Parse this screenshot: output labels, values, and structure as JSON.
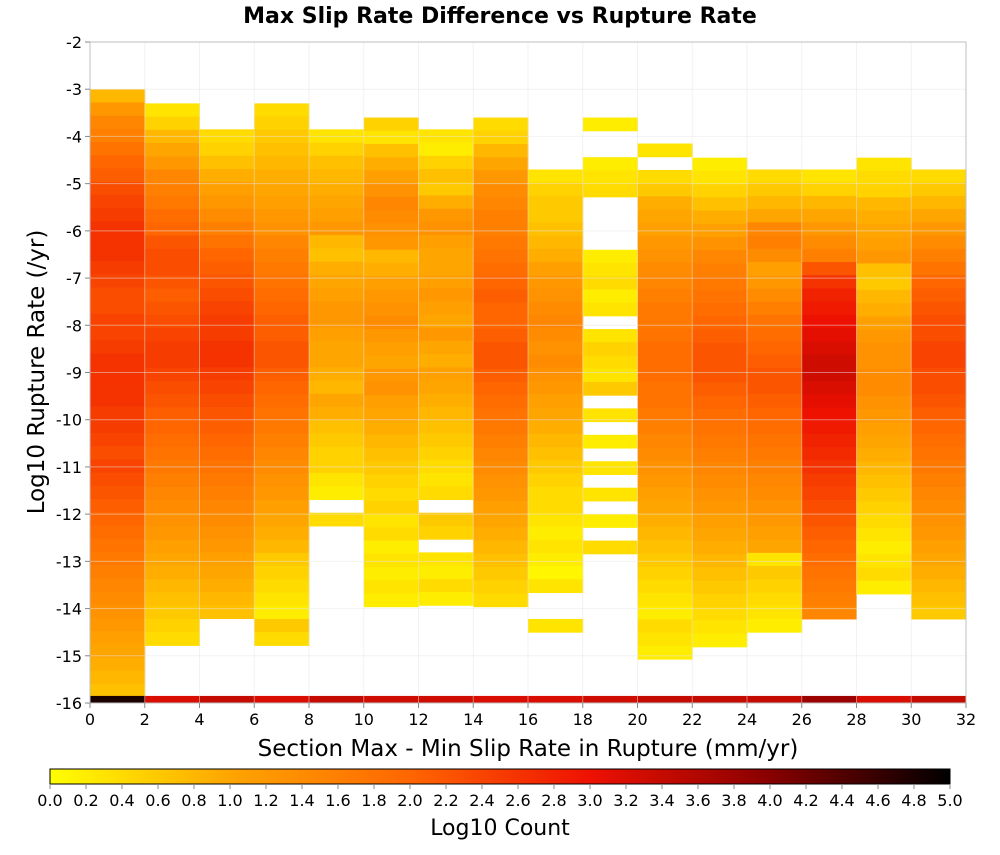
{
  "chart_data": {
    "type": "heatmap",
    "title": "Max Slip Rate Difference vs Rupture Rate",
    "xlabel": "Section Max - Min Slip Rate in Rupture (mm/yr)",
    "ylabel": "Log10 Rupture Rate (/yr)",
    "xlim": [
      0,
      32
    ],
    "ylim": [
      -16,
      -2
    ],
    "x_ticks": [
      "0",
      "2",
      "4",
      "6",
      "8",
      "10",
      "12",
      "14",
      "16",
      "18",
      "20",
      "22",
      "24",
      "26",
      "28",
      "30",
      "32"
    ],
    "y_ticks": [
      "-2",
      "-3",
      "-4",
      "-5",
      "-6",
      "-7",
      "-8",
      "-9",
      "-10",
      "-11",
      "-12",
      "-13",
      "-14",
      "-15",
      "-16"
    ],
    "x_bin_width": 2,
    "y_bin_height": 0.28,
    "grid": true,
    "colorbar": {
      "label": "Log10 Count",
      "min": 0.0,
      "max": 5.0,
      "ticks": [
        "0.0",
        "0.2",
        "0.4",
        "0.6",
        "0.8",
        "1.0",
        "1.2",
        "1.4",
        "1.6",
        "1.8",
        "2.0",
        "2.2",
        "2.4",
        "2.6",
        "2.8",
        "3.0",
        "3.2",
        "3.4",
        "3.6",
        "3.8",
        "4.0",
        "4.2",
        "4.4",
        "4.6",
        "4.8",
        "5.0"
      ],
      "colors": [
        "#ffff00",
        "#ffa500",
        "#ff6600",
        "#ee1100",
        "#880000",
        "#000000"
      ]
    },
    "columns": [
      {
        "x": 0,
        "top": -3.0,
        "tops": [
          0.8,
          1.2,
          1.5,
          1.6,
          1.8,
          2.0,
          2.1,
          2.3,
          2.4,
          2.5,
          2.6,
          2.6,
          2.6,
          2.5,
          2.4,
          2.3,
          2.3,
          2.4,
          2.4,
          2.5,
          2.6,
          2.6,
          2.6,
          2.6,
          2.5,
          2.5,
          2.4,
          2.3,
          2.4,
          2.3,
          2.2,
          2.1,
          2.0,
          1.9,
          1.8,
          1.7,
          1.6,
          1.5,
          1.4,
          1.3,
          1.2,
          1.1,
          1.0,
          0.9,
          0.8,
          0.7,
          0.6,
          4.8
        ]
      },
      {
        "x": 2,
        "top": -3.3,
        "tops": [
          0.3,
          0.5,
          0.8,
          1.0,
          1.2,
          1.5,
          1.6,
          1.7,
          1.9,
          2.0,
          2.2,
          2.3,
          2.3,
          2.2,
          2.1,
          2.2,
          2.3,
          2.4,
          2.5,
          2.5,
          2.4,
          2.3,
          2.2,
          2.1,
          2.0,
          1.9,
          1.8,
          1.7,
          1.6,
          1.5,
          1.4,
          1.3,
          1.2,
          1.1,
          1.0,
          0.9,
          0.8,
          0.7,
          0.6,
          0.5,
          0.4,
          3.2
        ]
      },
      {
        "x": 4,
        "top": -3.85,
        "tops": [
          0.4,
          0.5,
          0.7,
          0.9,
          1.1,
          1.2,
          1.4,
          1.6,
          1.8,
          2.0,
          2.1,
          2.2,
          2.3,
          2.4,
          2.5,
          2.5,
          2.6,
          2.6,
          2.5,
          2.4,
          2.3,
          2.2,
          2.1,
          2.0,
          1.9,
          1.8,
          1.7,
          1.6,
          1.5,
          1.4,
          1.3,
          1.2,
          1.1,
          1.0,
          0.9,
          0.8,
          0.7,
          3.4
        ]
      },
      {
        "x": 6,
        "top": -3.3,
        "tops": [
          0.4,
          0.5,
          0.6,
          0.7,
          0.8,
          0.9,
          1.0,
          1.1,
          1.2,
          1.3,
          1.5,
          1.6,
          1.7,
          1.8,
          1.9,
          2.0,
          2.1,
          2.1,
          2.2,
          2.2,
          2.1,
          2.0,
          1.9,
          1.8,
          1.7,
          1.6,
          1.5,
          1.4,
          1.3,
          1.2,
          1.1,
          1.0,
          0.9,
          0.8,
          0.6,
          0.5,
          0.4,
          0.3,
          0.2,
          0.6,
          0.4,
          3.2
        ]
      },
      {
        "x": 8,
        "top": -3.85,
        "tops": [
          0.3,
          0.5,
          0.7,
          0.8,
          0.9,
          1.0,
          1.1,
          1.2,
          0.8,
          0.7,
          0.9,
          1.0,
          1.1,
          1.2,
          1.2,
          1.1,
          1.0,
          1.0,
          0.9,
          0.8,
          1.0,
          0.9,
          0.7,
          0.6,
          0.5,
          0.5,
          0.3,
          0.2,
          -1,
          0.4,
          -1,
          -1,
          -1,
          -1,
          -1,
          -1,
          3.4
        ]
      },
      {
        "x": 10,
        "top": -3.6,
        "tops": [
          0.5,
          0.3,
          0.7,
          0.9,
          1.1,
          1.3,
          1.5,
          1.4,
          1.3,
          1.2,
          0.8,
          0.9,
          1.1,
          1.2,
          1.3,
          1.4,
          1.2,
          1.1,
          1.0,
          1.2,
          1.3,
          1.1,
          1.0,
          0.9,
          0.8,
          0.7,
          0.6,
          0.5,
          0.4,
          0.5,
          0.3,
          0.4,
          0.2,
          0.3,
          0.2,
          0.3,
          0.2,
          3.3
        ]
      },
      {
        "x": 12,
        "top": -3.85,
        "tops": [
          0.3,
          0.2,
          0.5,
          0.7,
          0.6,
          0.9,
          1.2,
          1.3,
          1.1,
          1.0,
          1.0,
          1.1,
          1.2,
          1.1,
          1.0,
          1.2,
          1.0,
          0.9,
          1.1,
          1.0,
          0.9,
          0.8,
          0.7,
          0.6,
          0.5,
          0.4,
          0.3,
          0.4,
          -1,
          0.6,
          0.5,
          -1,
          0.3,
          0.2,
          0.4,
          0.2,
          3.3
        ]
      },
      {
        "x": 14,
        "top": -3.6,
        "tops": [
          0.4,
          0.5,
          0.8,
          1.0,
          1.2,
          1.4,
          1.5,
          1.6,
          1.6,
          1.7,
          1.8,
          1.9,
          2.0,
          2.1,
          2.0,
          2.0,
          2.1,
          2.2,
          2.2,
          2.1,
          2.0,
          1.9,
          1.8,
          1.7,
          1.6,
          1.5,
          1.4,
          1.3,
          1.2,
          1.1,
          1.0,
          0.9,
          0.8,
          0.7,
          0.6,
          0.5,
          0.4,
          3.2
        ]
      },
      {
        "x": 16,
        "top": -4.7,
        "tops": [
          0.3,
          0.5,
          0.6,
          0.6,
          0.7,
          0.8,
          0.9,
          1.1,
          1.2,
          1.3,
          1.4,
          1.5,
          1.4,
          1.3,
          1.4,
          1.3,
          1.2,
          1.1,
          1.0,
          0.9,
          0.8,
          0.7,
          0.6,
          0.5,
          0.4,
          0.4,
          0.3,
          0.2,
          0.3,
          0.2,
          0.1,
          0.3,
          -1,
          -1,
          0.3,
          3.2
        ]
      },
      {
        "x": 18,
        "top": -3.6,
        "tops": [
          0.2,
          -1,
          -1,
          0.2,
          0.3,
          0.4,
          -1,
          -1,
          -1,
          -1,
          0.2,
          0.3,
          0.4,
          0.2,
          0.3,
          -1,
          0.3,
          0.5,
          0.4,
          0.3,
          0.6,
          -1,
          0.3,
          -1,
          0.2,
          -1,
          0.3,
          -1,
          0.3,
          -1,
          0.2,
          -1,
          0.4,
          -1,
          -1,
          -1,
          -1,
          -1,
          -1,
          -1,
          -1,
          -1,
          -1,
          -1,
          3.3
        ]
      },
      {
        "x": 20,
        "top": -4.15,
        "tops": [
          0.3,
          -1,
          0.4,
          0.6,
          0.9,
          1.0,
          1.1,
          1.2,
          1.3,
          1.4,
          1.5,
          1.6,
          1.7,
          1.7,
          1.8,
          1.9,
          1.9,
          1.9,
          1.8,
          1.8,
          1.7,
          1.6,
          1.5,
          1.4,
          1.3,
          1.2,
          1.1,
          1.0,
          0.9,
          0.8,
          0.7,
          0.6,
          0.5,
          0.4,
          0.3,
          0.2,
          0.4,
          0.3,
          0.2,
          3.4
        ]
      },
      {
        "x": 22,
        "top": -4.45,
        "tops": [
          0.2,
          0.3,
          0.5,
          0.7,
          0.9,
          1.1,
          1.3,
          1.5,
          1.6,
          1.7,
          1.8,
          1.9,
          2.0,
          2.1,
          2.2,
          2.2,
          2.2,
          2.1,
          2.0,
          1.9,
          1.8,
          1.7,
          1.6,
          1.5,
          1.4,
          1.3,
          1.2,
          1.1,
          1.0,
          0.9,
          0.8,
          0.7,
          0.6,
          0.5,
          0.4,
          0.3,
          0.2,
          3.4
        ]
      },
      {
        "x": 24,
        "top": -4.7,
        "tops": [
          0.4,
          0.6,
          0.8,
          1.0,
          1.5,
          1.6,
          1.4,
          1.1,
          1.2,
          1.4,
          1.6,
          1.8,
          1.9,
          2.0,
          2.1,
          2.2,
          2.2,
          2.1,
          2.0,
          1.9,
          1.8,
          1.7,
          1.6,
          1.5,
          1.4,
          1.3,
          1.2,
          1.1,
          1.0,
          0.3,
          0.6,
          0.5,
          0.4,
          0.3,
          0.2,
          3.4
        ]
      },
      {
        "x": 26,
        "top": -4.7,
        "tops": [
          0.3,
          0.5,
          0.8,
          1.0,
          1.2,
          1.4,
          1.6,
          2.2,
          2.6,
          2.8,
          2.9,
          3.0,
          3.1,
          3.2,
          3.3,
          3.3,
          3.2,
          3.1,
          3.0,
          2.9,
          2.8,
          2.7,
          2.6,
          2.5,
          2.4,
          2.3,
          2.2,
          2.1,
          2.0,
          1.9,
          1.8,
          1.7,
          1.6,
          1.5,
          3.8
        ]
      },
      {
        "x": 28,
        "top": -4.45,
        "tops": [
          0.3,
          0.4,
          0.5,
          0.8,
          0.9,
          1.0,
          1.1,
          1.2,
          0.7,
          0.6,
          0.8,
          0.9,
          1.1,
          1.2,
          1.3,
          1.3,
          1.4,
          1.4,
          1.3,
          1.2,
          1.1,
          1.0,
          0.9,
          0.8,
          0.7,
          0.6,
          0.5,
          0.4,
          0.3,
          0.2,
          0.3,
          0.4,
          0.2,
          -1,
          3.2
        ]
      },
      {
        "x": 30,
        "top": -4.7,
        "tops": [
          0.4,
          0.6,
          0.8,
          1.0,
          1.2,
          1.4,
          1.6,
          1.8,
          2.0,
          2.1,
          2.2,
          2.3,
          2.3,
          2.4,
          2.4,
          2.3,
          2.3,
          2.2,
          2.1,
          2.0,
          1.9,
          1.8,
          1.7,
          1.6,
          1.5,
          1.4,
          1.3,
          1.2,
          1.1,
          1.0,
          0.9,
          0.8,
          0.7,
          0.6,
          3.4
        ]
      }
    ]
  }
}
